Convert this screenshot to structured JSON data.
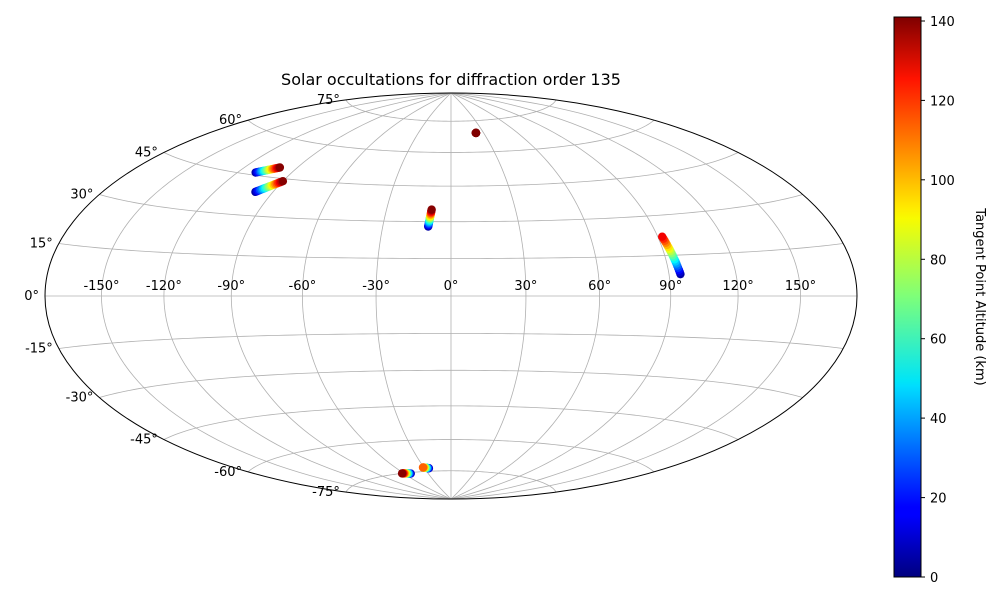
{
  "chart_data": {
    "type": "scatter",
    "projection": "hammer",
    "title": "Solar occultations for diffraction order 135",
    "xlabel": "",
    "ylabel": "",
    "grid": true,
    "x_ticks": [
      "-150°",
      "-120°",
      "-90°",
      "-60°",
      "-30°",
      "0°",
      "30°",
      "60°",
      "90°",
      "120°",
      "150°"
    ],
    "x_tick_values": [
      -150,
      -120,
      -90,
      -60,
      -30,
      0,
      30,
      60,
      90,
      120,
      150
    ],
    "y_ticks": [
      "-75°",
      "-60°",
      "-45°",
      "-30°",
      "-15°",
      "0°",
      "15°",
      "30°",
      "45°",
      "60°",
      "75°"
    ],
    "y_tick_values": [
      -75,
      -60,
      -45,
      -30,
      -15,
      0,
      15,
      30,
      45,
      60,
      75
    ],
    "colorbar": {
      "label": "Tangent Point Altitude (km)",
      "colormap": "jet",
      "range": [
        0,
        141
      ],
      "ticks": [
        "0",
        "20",
        "40",
        "60",
        "80",
        "100",
        "120",
        "140"
      ],
      "tick_values": [
        0,
        20,
        40,
        60,
        80,
        100,
        120,
        140
      ]
    },
    "series": [
      {
        "points": [
          {
            "lon": -110,
            "lat": 46,
            "alt": 5
          },
          {
            "lon": -100,
            "lat": 49,
            "alt": 140
          }
        ]
      },
      {
        "points": [
          {
            "lon": -99,
            "lat": 39,
            "alt": 5
          },
          {
            "lon": -90,
            "lat": 44,
            "alt": 140
          }
        ]
      },
      {
        "points": [
          {
            "lon": -10,
            "lat": 28,
            "alt": 5
          },
          {
            "lon": -9,
            "lat": 35,
            "alt": 140
          }
        ]
      },
      {
        "points": [
          {
            "lon": 23,
            "lat": 69,
            "alt": 140
          },
          {
            "lon": 23,
            "lat": 69,
            "alt": 141
          }
        ]
      },
      {
        "points": [
          {
            "lon": 95,
            "lat": 8,
            "alt": 5
          },
          {
            "lon": 92,
            "lat": 22,
            "alt": 125
          }
        ]
      },
      {
        "points": [
          {
            "lon": -31,
            "lat": -73,
            "alt": 110
          },
          {
            "lon": -25,
            "lat": -73.5,
            "alt": 5
          }
        ]
      },
      {
        "points": [
          {
            "lon": -62,
            "lat": -75,
            "alt": 140
          },
          {
            "lon": -52,
            "lat": -75.5,
            "alt": 5
          }
        ]
      }
    ]
  }
}
